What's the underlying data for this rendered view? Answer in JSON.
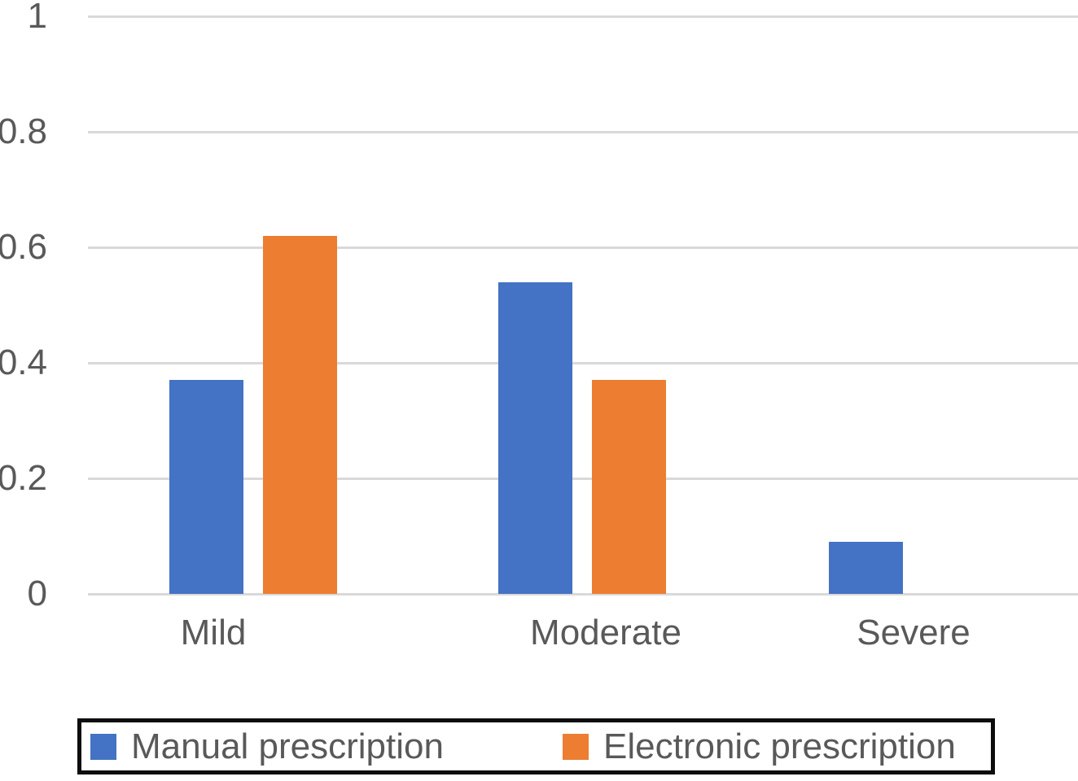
{
  "chart_data": {
    "type": "bar",
    "categories": [
      "Mild",
      "Moderate",
      "Severe"
    ],
    "series": [
      {
        "name": "Manual prescription",
        "color": "#4472C4",
        "values": [
          0.37,
          0.54,
          0.09
        ]
      },
      {
        "name": "Electronic prescription",
        "color": "#ED7D31",
        "values": [
          0.62,
          0.37,
          0
        ]
      }
    ],
    "ylim": [
      0,
      1
    ],
    "yticks": [
      0,
      0.2,
      0.4,
      0.6,
      0.8,
      1
    ],
    "ytick_labels": [
      "0",
      "0.2",
      "0.4",
      "0.6",
      "0.8",
      "1"
    ],
    "grid": true,
    "gridline_color": "#d9d9d9",
    "axis_text_color": "#595959",
    "legend_position": "bottom",
    "legend_border_color": "#0d0d0d",
    "legend_background": "#ffffff",
    "plot_background": "#ffffff"
  }
}
